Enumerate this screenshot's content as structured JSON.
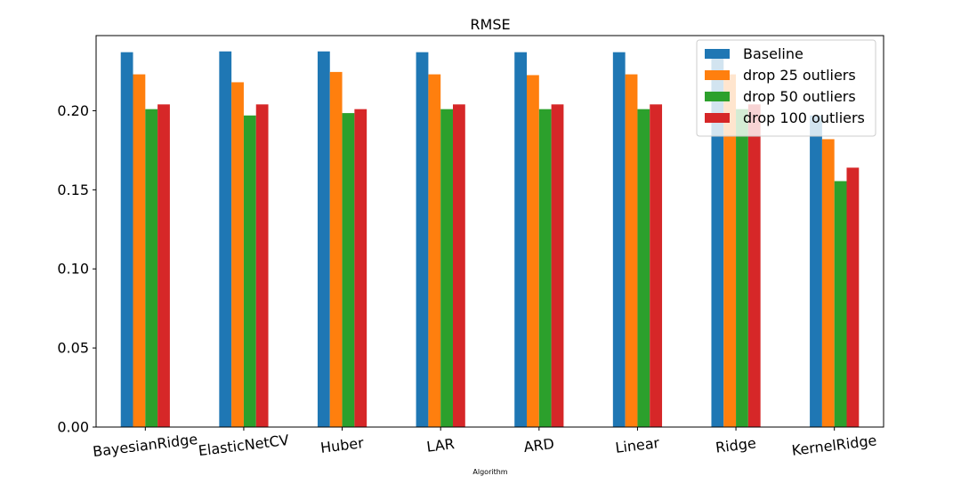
{
  "chart_data": {
    "type": "bar",
    "title": "RMSE",
    "xlabel": "Algorithm",
    "ylabel": "",
    "categories": [
      "BayesianRidge",
      "ElasticNetCV",
      "Huber",
      "LAR",
      "ARD",
      "Linear",
      "Ridge",
      "KernelRidge"
    ],
    "series": [
      {
        "name": "Baseline",
        "color": "#1f77b4",
        "values": [
          0.237,
          0.2375,
          0.2375,
          0.237,
          0.237,
          0.237,
          0.237,
          0.197
        ]
      },
      {
        "name": "drop 25 outliers",
        "color": "#ff7f0e",
        "values": [
          0.223,
          0.218,
          0.2245,
          0.223,
          0.2225,
          0.223,
          0.223,
          0.182
        ]
      },
      {
        "name": "drop 50 outliers",
        "color": "#2ca02c",
        "values": [
          0.201,
          0.197,
          0.1985,
          0.201,
          0.201,
          0.201,
          0.201,
          0.1555
        ]
      },
      {
        "name": "drop 100 outliers",
        "color": "#d62728",
        "values": [
          0.204,
          0.204,
          0.201,
          0.204,
          0.204,
          0.204,
          0.204,
          0.164
        ]
      }
    ],
    "ylim": [
      0,
      0.2475
    ],
    "yticks": [
      "0.00",
      "0.05",
      "0.10",
      "0.15",
      "0.20"
    ],
    "grid": false,
    "legend_position": "top-right"
  }
}
